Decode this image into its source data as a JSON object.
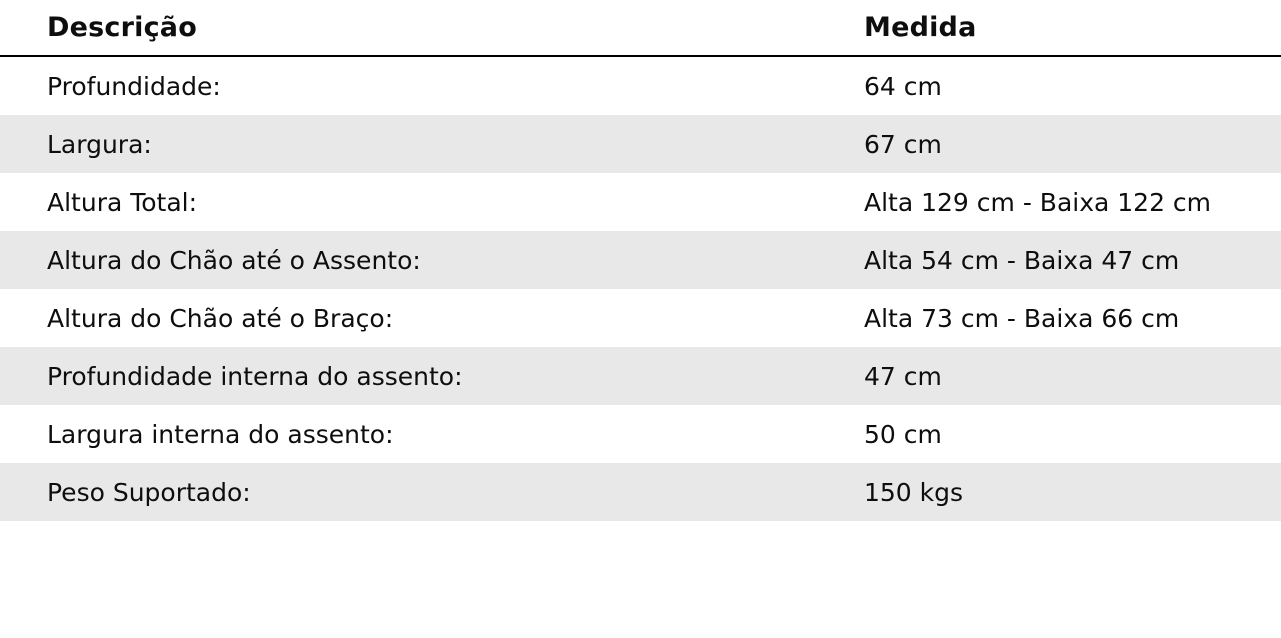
{
  "table": {
    "headers": {
      "description": "Descrição",
      "measure": "Medida"
    },
    "rows": [
      {
        "label": "Profundidade:",
        "value": "64 cm"
      },
      {
        "label": "Largura:",
        "value": "67 cm"
      },
      {
        "label": "Altura Total:",
        "value": "Alta 129 cm - Baixa 122 cm"
      },
      {
        "label": "Altura do Chão até o Assento:",
        "value": "Alta 54 cm - Baixa 47 cm"
      },
      {
        "label": "Altura do Chão até o Braço:",
        "value": "Alta 73 cm - Baixa 66 cm"
      },
      {
        "label": "Profundidade interna do assento:",
        "value": "47 cm"
      },
      {
        "label": "Largura interna do assento:",
        "value": "50 cm"
      },
      {
        "label": "Peso Suportado:",
        "value": "150 kgs"
      }
    ],
    "style": {
      "stripe_color": "#e8e8e8",
      "divider_color": "#000000",
      "text_color": "#0e0e0e",
      "background_color": "#ffffff"
    }
  }
}
